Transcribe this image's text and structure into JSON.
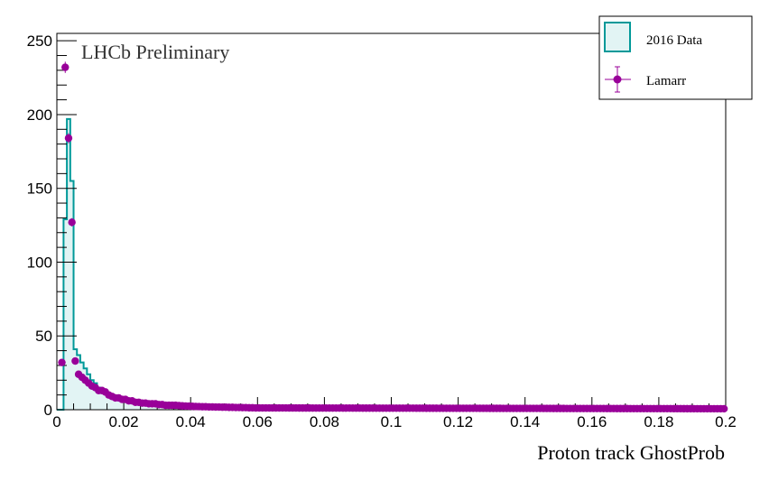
{
  "chart_data": {
    "type": "histogram",
    "xlabel": "Proton track GhostProb",
    "ylabel": "",
    "xlim": [
      0,
      0.2
    ],
    "ylim": [
      0,
      255
    ],
    "x_ticks": [
      "0",
      "0.02",
      "0.04",
      "0.06",
      "0.08",
      "0.1",
      "0.12",
      "0.14",
      "0.16",
      "0.18",
      "0.2"
    ],
    "y_ticks": [
      "0",
      "50",
      "100",
      "150",
      "200",
      "250"
    ],
    "annotation": "LHCb Preliminary",
    "legend": {
      "position": "top-right",
      "entries": [
        {
          "label": "2016 Data",
          "style": "filled-histogram"
        },
        {
          "label": "Lamarr",
          "style": "markers-with-errors"
        }
      ]
    },
    "bin_width": 0.001,
    "series": [
      {
        "name": "2016 Data",
        "color": "#009999",
        "fill": "#e2f4f4",
        "values": [
          0,
          0,
          129,
          197,
          155,
          41,
          37,
          32,
          28,
          24,
          20,
          18,
          15,
          13,
          12,
          10,
          9,
          8,
          7,
          7,
          6,
          6,
          5,
          5,
          4.5,
          4,
          4,
          3.5,
          3.5,
          3,
          3,
          3,
          2.8,
          2.6,
          2.5,
          2.4,
          2.3,
          2.2,
          2.1,
          2,
          1.9,
          1.8,
          1.8,
          1.7,
          1.6,
          1.6,
          1.5,
          1.5,
          1.4,
          1.4,
          1.3,
          1.3,
          1.2,
          1.2,
          1.1,
          1.1,
          1.1,
          1,
          1,
          1
        ]
      },
      {
        "name": "Lamarr",
        "color": "#990099",
        "values": [
          0,
          32,
          232,
          184,
          127,
          33,
          24,
          22,
          20,
          18,
          16,
          15,
          13,
          13,
          12,
          10,
          9,
          8,
          8,
          7,
          7,
          6,
          6,
          5,
          5,
          4.5,
          4.5,
          4,
          4,
          4,
          3.5,
          3.5,
          3,
          3,
          3,
          3,
          2.8,
          2.6,
          2.5,
          2.4,
          2.3,
          2.2,
          2.1,
          2,
          2,
          1.9,
          1.9,
          1.8,
          1.8,
          1.7,
          1.7,
          1.6,
          1.6,
          1.5,
          1.5,
          1.4,
          1.4,
          1.3,
          1.3,
          1.2
        ]
      }
    ]
  }
}
